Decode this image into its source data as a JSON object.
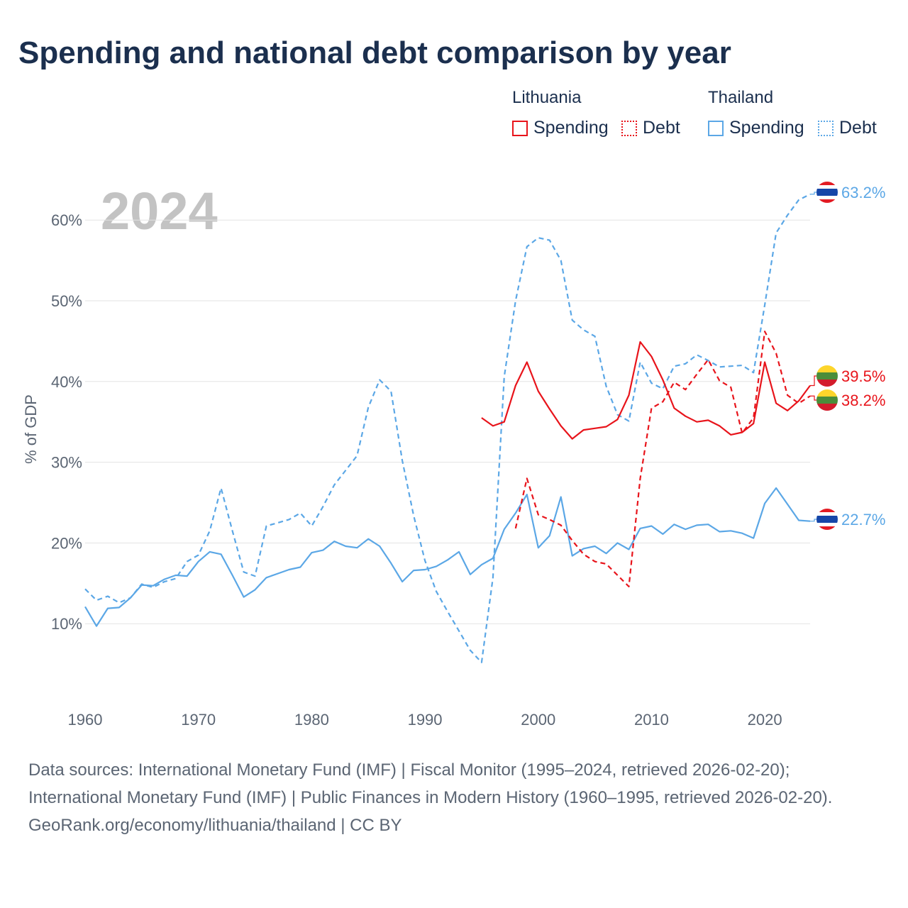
{
  "title": "Spending and national debt comparison by year",
  "legend": {
    "groups": [
      {
        "country": "Lithuania",
        "spending_label": "Spending",
        "debt_label": "Debt",
        "color": "#e8141b"
      },
      {
        "country": "Thailand",
        "spending_label": "Spending",
        "debt_label": "Debt",
        "color": "#5ba7e6"
      }
    ]
  },
  "footer": {
    "sources": "Data sources: International Monetary Fund (IMF) | Fiscal Monitor (1995–2024, retrieved 2026-02-20); International Monetary Fund (IMF) | Public Finances in Modern History (1960–1995, retrieved 2026-02-20).",
    "link": "GeoRank.org/economy/lithuania/thailand | CC BY"
  },
  "chart_data": {
    "type": "line",
    "year_label": "2024",
    "ylabel": "% of GDP",
    "xlim": [
      1960,
      2024
    ],
    "ylim": [
      0,
      66
    ],
    "x_ticks": [
      1960,
      1970,
      1980,
      1990,
      2000,
      2010,
      2020
    ],
    "y_ticks": [
      {
        "value": 10,
        "label": "10%"
      },
      {
        "value": 20,
        "label": "20%"
      },
      {
        "value": 30,
        "label": "30%"
      },
      {
        "value": 40,
        "label": "40%"
      },
      {
        "value": 50,
        "label": "50%"
      },
      {
        "value": 60,
        "label": "60%"
      }
    ],
    "series": [
      {
        "name": "Thailand Debt",
        "country": "Thailand",
        "kind": "debt",
        "color": "#5ba7e6",
        "dashed": true,
        "end_label": "63.2%",
        "end_value": 63.2,
        "x": [
          1960,
          1961,
          1962,
          1963,
          1964,
          1965,
          1966,
          1967,
          1968,
          1969,
          1970,
          1971,
          1972,
          1973,
          1974,
          1975,
          1976,
          1977,
          1978,
          1979,
          1980,
          1981,
          1982,
          1983,
          1984,
          1985,
          1986,
          1987,
          1988,
          1989,
          1990,
          1991,
          1992,
          1993,
          1994,
          1995,
          1996,
          1997,
          1998,
          1999,
          2000,
          2001,
          2002,
          2003,
          2004,
          2005,
          2006,
          2007,
          2008,
          2009,
          2010,
          2011,
          2012,
          2013,
          2014,
          2015,
          2016,
          2017,
          2018,
          2019,
          2020,
          2021,
          2022,
          2023,
          2024
        ],
        "values": [
          14.3,
          12.9,
          13.4,
          12.6,
          13.2,
          14.9,
          14.5,
          15.2,
          15.6,
          17.7,
          18.5,
          21.5,
          26.8,
          21.5,
          16.4,
          15.9,
          22.1,
          22.5,
          22.9,
          23.7,
          22.1,
          24.5,
          27.2,
          29.0,
          30.8,
          36.8,
          40.2,
          38.8,
          30.2,
          23.4,
          17.8,
          14.0,
          11.5,
          9.1,
          6.7,
          5.2,
          15.7,
          40.6,
          50.0,
          56.7,
          57.8,
          57.5,
          55.0,
          47.6,
          46.4,
          45.6,
          39.4,
          35.9,
          35.1,
          42.4,
          39.8,
          39.1,
          41.9,
          42.2,
          43.3,
          42.6,
          41.8,
          41.9,
          42.0,
          41.1,
          49.5,
          58.4,
          60.6,
          62.5,
          63.2
        ]
      },
      {
        "name": "Thailand Spending",
        "country": "Thailand",
        "kind": "spending",
        "color": "#5ba7e6",
        "dashed": false,
        "end_label": "22.7%",
        "end_value": 22.7,
        "x": [
          1960,
          1961,
          1962,
          1963,
          1964,
          1965,
          1966,
          1967,
          1968,
          1969,
          1970,
          1971,
          1972,
          1973,
          1974,
          1975,
          1976,
          1977,
          1978,
          1979,
          1980,
          1981,
          1982,
          1983,
          1984,
          1985,
          1986,
          1987,
          1988,
          1989,
          1990,
          1991,
          1992,
          1993,
          1994,
          1995,
          1996,
          1997,
          1998,
          1999,
          2000,
          2001,
          2002,
          2003,
          2004,
          2005,
          2006,
          2007,
          2008,
          2009,
          2010,
          2011,
          2012,
          2013,
          2014,
          2015,
          2016,
          2017,
          2018,
          2019,
          2020,
          2021,
          2022,
          2023,
          2024
        ],
        "values": [
          12.1,
          9.7,
          11.9,
          12.0,
          13.2,
          14.8,
          14.7,
          15.5,
          16.0,
          15.9,
          17.7,
          18.9,
          18.6,
          16.0,
          13.3,
          14.2,
          15.7,
          16.2,
          16.7,
          17.0,
          18.8,
          19.1,
          20.2,
          19.6,
          19.4,
          20.5,
          19.6,
          17.5,
          15.2,
          16.6,
          16.7,
          17.1,
          17.9,
          18.9,
          16.1,
          17.3,
          18.1,
          21.7,
          23.7,
          26.0,
          19.4,
          20.9,
          25.7,
          18.4,
          19.3,
          19.6,
          18.7,
          20.0,
          19.2,
          21.8,
          22.1,
          21.1,
          22.3,
          21.7,
          22.2,
          22.3,
          21.4,
          21.5,
          21.2,
          20.6,
          24.9,
          26.8,
          24.8,
          22.8,
          22.7
        ]
      },
      {
        "name": "Lithuania Spending",
        "country": "Lithuania",
        "kind": "spending",
        "color": "#e8141b",
        "dashed": false,
        "end_label": "39.5%",
        "end_value": 39.5,
        "x": [
          1995,
          1996,
          1997,
          1998,
          1999,
          2000,
          2001,
          2002,
          2003,
          2004,
          2005,
          2006,
          2007,
          2008,
          2009,
          2010,
          2011,
          2012,
          2013,
          2014,
          2015,
          2016,
          2017,
          2018,
          2019,
          2020,
          2021,
          2022,
          2023,
          2024
        ],
        "values": [
          35.5,
          34.5,
          35.0,
          39.5,
          42.4,
          38.8,
          36.6,
          34.5,
          32.9,
          34.0,
          34.2,
          34.4,
          35.3,
          38.3,
          44.9,
          43.1,
          40.2,
          36.7,
          35.7,
          35.0,
          35.2,
          34.5,
          33.4,
          33.7,
          34.8,
          42.4,
          37.3,
          36.4,
          37.6,
          39.5
        ]
      },
      {
        "name": "Lithuania Debt",
        "country": "Lithuania",
        "kind": "debt",
        "color": "#e8141b",
        "dashed": true,
        "end_label": "38.2%",
        "end_value": 38.2,
        "x": [
          1998,
          1999,
          2000,
          2001,
          2002,
          2003,
          2004,
          2005,
          2006,
          2007,
          2008,
          2009,
          2010,
          2011,
          2012,
          2013,
          2014,
          2015,
          2016,
          2017,
          2018,
          2019,
          2020,
          2021,
          2022,
          2023,
          2024
        ],
        "values": [
          21.8,
          28.0,
          23.5,
          22.9,
          22.2,
          20.3,
          18.6,
          17.7,
          17.4,
          16.0,
          14.6,
          28.0,
          36.7,
          37.5,
          39.9,
          39.0,
          40.9,
          42.7,
          40.1,
          39.3,
          33.6,
          35.5,
          46.2,
          43.5,
          38.3,
          37.3,
          38.2
        ]
      }
    ]
  }
}
